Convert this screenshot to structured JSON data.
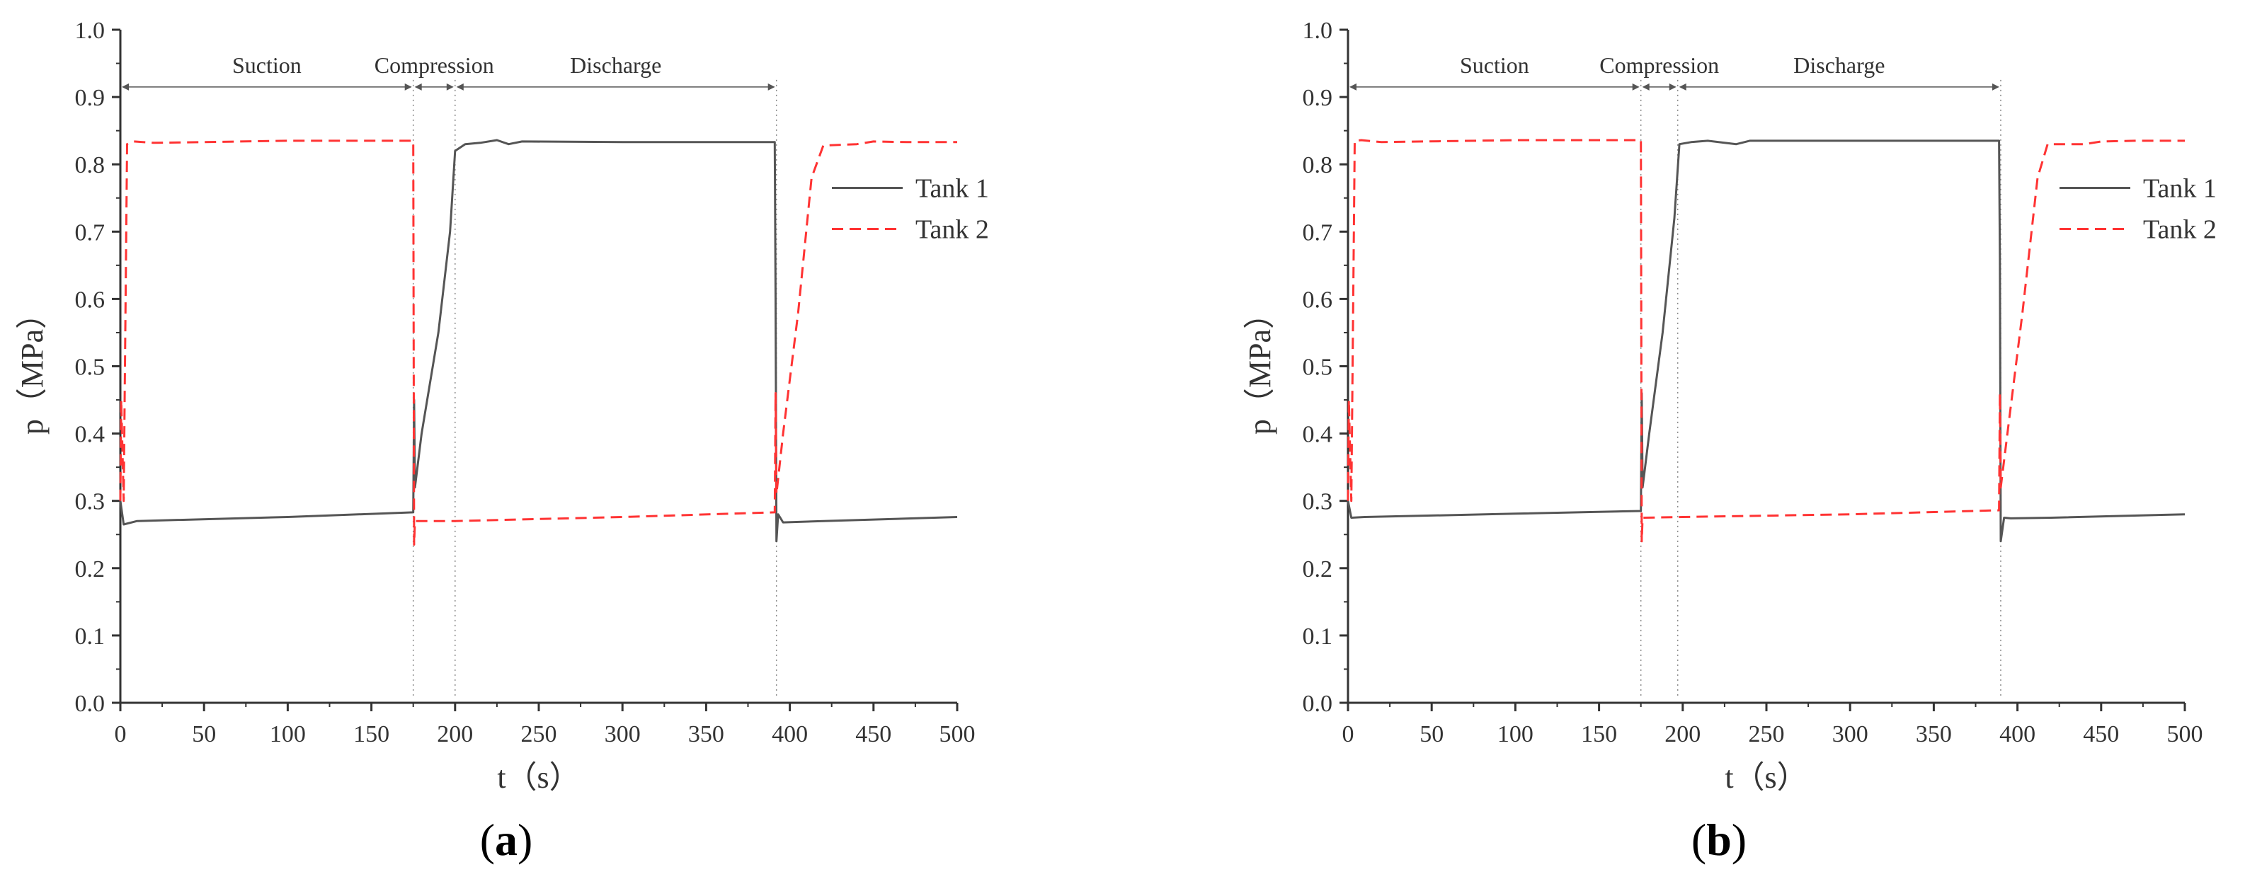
{
  "figure": {
    "panels": [
      {
        "label": "a"
      },
      {
        "label": "b"
      }
    ]
  },
  "chart_data": [
    {
      "type": "line",
      "panel": "a",
      "xlabel": "t（s）",
      "ylabel": "p（MPa）",
      "xlim": [
        0,
        500
      ],
      "ylim": [
        0,
        1.0
      ],
      "xticks": [
        "0",
        "50",
        "100",
        "150",
        "200",
        "250",
        "300",
        "350",
        "400",
        "450",
        "500"
      ],
      "yticks": [
        "0.0",
        "0.1",
        "0.2",
        "0.3",
        "0.4",
        "0.5",
        "0.6",
        "0.7",
        "0.8",
        "0.9",
        "1.0"
      ],
      "grid": false,
      "legend": "right",
      "phases": [
        {
          "label": "Suction",
          "x0": 0,
          "x1": 175
        },
        {
          "label": "Compression",
          "x0": 175,
          "x1": 200
        },
        {
          "label": "Discharge",
          "x0": 200,
          "x1": 392
        }
      ],
      "series": [
        {
          "name": "Tank 1",
          "color": "#555555",
          "style": "solid",
          "x": [
            0,
            2,
            10,
            100,
            175,
            175.5,
            176,
            180,
            190,
            197,
            200,
            206,
            215,
            225,
            232,
            240,
            300,
            391,
            391.5,
            392,
            393,
            396,
            420,
            500
          ],
          "y": [
            0.3,
            0.265,
            0.27,
            0.276,
            0.283,
            0.45,
            0.32,
            0.4,
            0.55,
            0.7,
            0.82,
            0.83,
            0.832,
            0.836,
            0.83,
            0.834,
            0.833,
            0.833,
            0.6,
            0.24,
            0.28,
            0.268,
            0.27,
            0.276
          ]
        },
        {
          "name": "Tank 2",
          "color": "#ff3333",
          "style": "dashed",
          "x": [
            0,
            0.5,
            2,
            4,
            8,
            20,
            100,
            175,
            175.5,
            176,
            200,
            300,
            391,
            391.5,
            392,
            396,
            405,
            413,
            420,
            440,
            450,
            470,
            500
          ],
          "y": [
            0.3,
            0.45,
            0.3,
            0.83,
            0.834,
            0.832,
            0.835,
            0.835,
            0.235,
            0.27,
            0.27,
            0.276,
            0.283,
            0.46,
            0.31,
            0.4,
            0.58,
            0.78,
            0.828,
            0.83,
            0.834,
            0.833,
            0.833
          ]
        }
      ]
    },
    {
      "type": "line",
      "panel": "b",
      "xlabel": "t（s）",
      "ylabel": "p（MPa）",
      "xlim": [
        0,
        500
      ],
      "ylim": [
        0,
        1.0
      ],
      "xticks": [
        "0",
        "50",
        "100",
        "150",
        "200",
        "250",
        "300",
        "350",
        "400",
        "450",
        "500"
      ],
      "yticks": [
        "0.0",
        "0.1",
        "0.2",
        "0.3",
        "0.4",
        "0.5",
        "0.6",
        "0.7",
        "0.8",
        "0.9",
        "1.0"
      ],
      "grid": false,
      "legend": "right",
      "phases": [
        {
          "label": "Suction",
          "x0": 0,
          "x1": 175
        },
        {
          "label": "Compression",
          "x0": 175,
          "x1": 197
        },
        {
          "label": "Discharge",
          "x0": 197,
          "x1": 390
        }
      ],
      "series": [
        {
          "name": "Tank 1",
          "color": "#555555",
          "style": "solid",
          "x": [
            0,
            2,
            10,
            100,
            175,
            175.5,
            176,
            180,
            188,
            195,
            198,
            205,
            215,
            225,
            232,
            240,
            300,
            389,
            389.5,
            390,
            392,
            396,
            420,
            500
          ],
          "y": [
            0.3,
            0.275,
            0.276,
            0.281,
            0.285,
            0.46,
            0.32,
            0.4,
            0.55,
            0.72,
            0.83,
            0.833,
            0.835,
            0.832,
            0.83,
            0.835,
            0.835,
            0.835,
            0.66,
            0.24,
            0.275,
            0.274,
            0.275,
            0.28
          ]
        },
        {
          "name": "Tank 2",
          "color": "#ff3333",
          "style": "dashed",
          "x": [
            0,
            0.5,
            2,
            4,
            8,
            20,
            100,
            175,
            175.5,
            176,
            200,
            300,
            389,
            389.5,
            390,
            394,
            403,
            412,
            418,
            440,
            450,
            470,
            500
          ],
          "y": [
            0.3,
            0.45,
            0.3,
            0.835,
            0.836,
            0.833,
            0.836,
            0.836,
            0.24,
            0.275,
            0.276,
            0.28,
            0.286,
            0.46,
            0.32,
            0.4,
            0.58,
            0.78,
            0.83,
            0.83,
            0.834,
            0.835,
            0.835
          ]
        }
      ]
    }
  ]
}
